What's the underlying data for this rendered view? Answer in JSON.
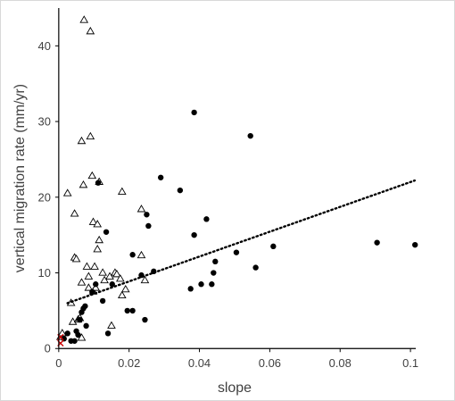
{
  "chart_data": {
    "type": "scatter",
    "title": "",
    "xlabel": "slope",
    "ylabel": "vertical migration rate (mm/yr)",
    "xlim": [
      0,
      0.1
    ],
    "ylim": [
      0,
      45
    ],
    "x_ticks": [
      "0",
      "0.02",
      "0.04",
      "0.06",
      "0.08",
      "0.1"
    ],
    "y_ticks": [
      "0",
      "10",
      "20",
      "30",
      "40"
    ],
    "grid": false,
    "legend": "none",
    "colors": {
      "axis": "#000000",
      "text": "#404040",
      "dot": "#000000",
      "triangle_edge": "#000000",
      "cross": "#cc0000",
      "trend": "#000000"
    },
    "series": [
      {
        "marker": "triangle-open",
        "points": [
          [
            0.0005,
            1.5
          ],
          [
            0.001,
            2.0
          ],
          [
            0.0025,
            20.5
          ],
          [
            0.0035,
            6.0
          ],
          [
            0.004,
            3.5
          ],
          [
            0.0045,
            17.8
          ],
          [
            0.0045,
            12.0
          ],
          [
            0.005,
            11.8
          ],
          [
            0.0055,
            3.8
          ],
          [
            0.006,
            4.0
          ],
          [
            0.0065,
            1.4
          ],
          [
            0.0065,
            8.7
          ],
          [
            0.0065,
            27.4
          ],
          [
            0.007,
            21.6
          ],
          [
            0.0072,
            43.4
          ],
          [
            0.008,
            10.8
          ],
          [
            0.0085,
            8.0
          ],
          [
            0.0085,
            9.5
          ],
          [
            0.009,
            28.0
          ],
          [
            0.009,
            41.9
          ],
          [
            0.0095,
            22.8
          ],
          [
            0.0098,
            16.7
          ],
          [
            0.0098,
            7.5
          ],
          [
            0.0102,
            10.8
          ],
          [
            0.0105,
            8.0
          ],
          [
            0.011,
            16.4
          ],
          [
            0.011,
            13.1
          ],
          [
            0.0115,
            14.3
          ],
          [
            0.0115,
            22.0
          ],
          [
            0.0125,
            10.0
          ],
          [
            0.013,
            9.0
          ],
          [
            0.0145,
            9.5
          ],
          [
            0.015,
            3.0
          ],
          [
            0.016,
            10.0
          ],
          [
            0.0165,
            9.8
          ],
          [
            0.0175,
            9.2
          ],
          [
            0.018,
            7.0
          ],
          [
            0.018,
            20.7
          ],
          [
            0.019,
            7.8
          ],
          [
            0.0235,
            18.4
          ],
          [
            0.0235,
            12.3
          ],
          [
            0.0245,
            9.0
          ]
        ]
      },
      {
        "marker": "dot",
        "points": [
          [
            0.0015,
            1.3
          ],
          [
            0.0025,
            2.0
          ],
          [
            0.0035,
            1.0
          ],
          [
            0.0045,
            1.0
          ],
          [
            0.005,
            2.3
          ],
          [
            0.0055,
            1.8
          ],
          [
            0.006,
            3.8
          ],
          [
            0.0065,
            4.8
          ],
          [
            0.007,
            5.3
          ],
          [
            0.0075,
            5.6
          ],
          [
            0.0078,
            3.0
          ],
          [
            0.0095,
            7.5
          ],
          [
            0.0105,
            8.5
          ],
          [
            0.0112,
            21.9
          ],
          [
            0.0125,
            6.3
          ],
          [
            0.0135,
            15.4
          ],
          [
            0.014,
            2.0
          ],
          [
            0.0152,
            8.5
          ],
          [
            0.0195,
            5.0
          ],
          [
            0.021,
            12.4
          ],
          [
            0.021,
            5.0
          ],
          [
            0.0235,
            9.7
          ],
          [
            0.0245,
            3.8
          ],
          [
            0.025,
            17.7
          ],
          [
            0.0255,
            16.2
          ],
          [
            0.027,
            10.2
          ],
          [
            0.029,
            22.6
          ],
          [
            0.0345,
            20.9
          ],
          [
            0.0375,
            7.9
          ],
          [
            0.0385,
            31.2
          ],
          [
            0.0385,
            15.0
          ],
          [
            0.0405,
            8.5
          ],
          [
            0.042,
            17.1
          ],
          [
            0.0435,
            8.5
          ],
          [
            0.044,
            10.0
          ],
          [
            0.0445,
            11.5
          ],
          [
            0.0505,
            12.7
          ],
          [
            0.0545,
            28.1
          ],
          [
            0.056,
            10.7
          ],
          [
            0.061,
            13.5
          ],
          [
            0.0905,
            14.0
          ],
          [
            0.1013,
            13.7
          ]
        ]
      },
      {
        "marker": "cross",
        "points": [
          [
            0.0005,
            0.7
          ],
          [
            0.0005,
            1.5
          ]
        ]
      }
    ],
    "trendline": {
      "style": "dotted",
      "from": [
        0.0025,
        6.0
      ],
      "to": [
        0.1012,
        22.2
      ]
    }
  }
}
